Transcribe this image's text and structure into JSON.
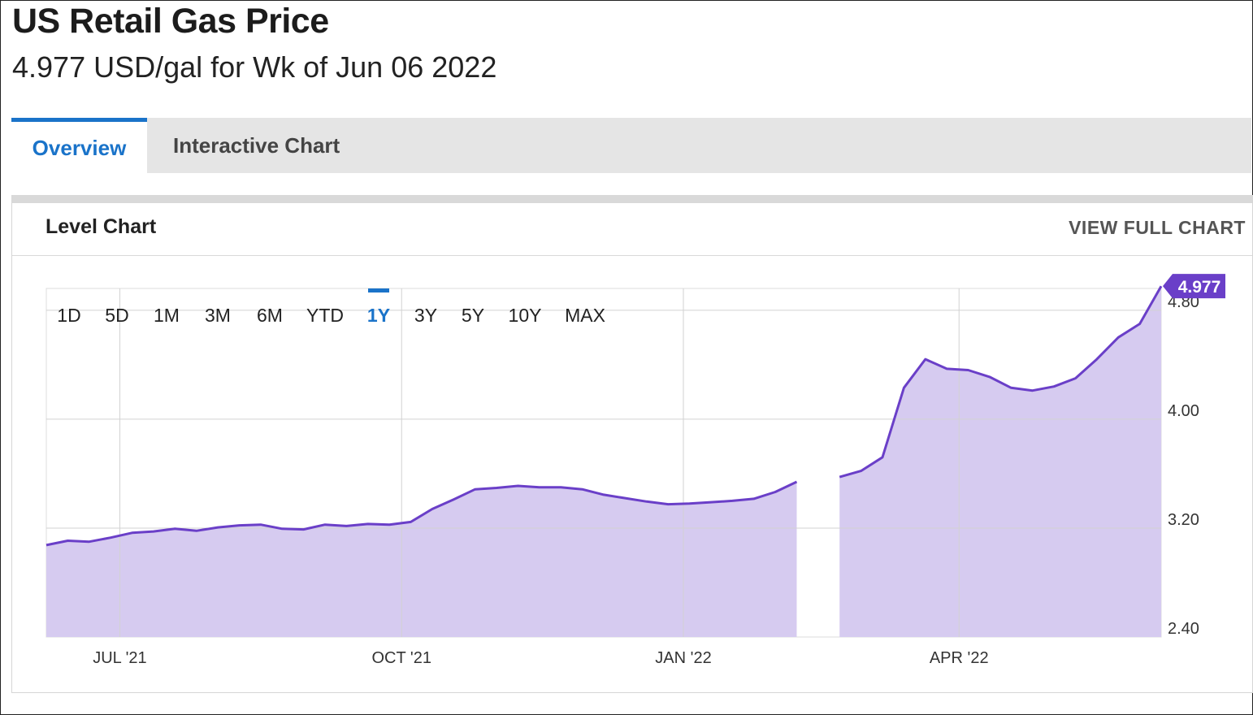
{
  "header": {
    "title": "US Retail Gas Price",
    "subtitle": "4.977 USD/gal for Wk of Jun 06 2022"
  },
  "tabs": [
    {
      "label": "Overview",
      "active": true
    },
    {
      "label": "Interactive Chart",
      "active": false
    }
  ],
  "card": {
    "title": "Level Chart",
    "view_full_label": "VIEW FULL CHART"
  },
  "range_buttons": [
    {
      "label": "1D",
      "active": false
    },
    {
      "label": "5D",
      "active": false
    },
    {
      "label": "1M",
      "active": false
    },
    {
      "label": "3M",
      "active": false
    },
    {
      "label": "6M",
      "active": false
    },
    {
      "label": "YTD",
      "active": false
    },
    {
      "label": "1Y",
      "active": true
    },
    {
      "label": "3Y",
      "active": false
    },
    {
      "label": "5Y",
      "active": false
    },
    {
      "label": "10Y",
      "active": false
    },
    {
      "label": "MAX",
      "active": false
    }
  ],
  "colors": {
    "line": "#6a3fc8",
    "fill": "#d6cbf0",
    "badge": "#6a3fc8",
    "accent": "#1a73c9"
  },
  "chart_data": {
    "type": "area",
    "x_tick_labels": [
      "JUL '21",
      "OCT '21",
      "JAN '22",
      "APR '22"
    ],
    "x_tick_dates": [
      "2021-07-01",
      "2021-10-01",
      "2022-01-01",
      "2022-04-01"
    ],
    "y_tick_labels": [
      "2.40",
      "3.20",
      "4.00",
      "4.80"
    ],
    "ylim": [
      2.4,
      4.96
    ],
    "last_value_label": "4.977",
    "grid": true,
    "series": [
      {
        "points": [
          {
            "date": "2021-06-07",
            "value": 3.075
          },
          {
            "date": "2021-06-14",
            "value": 3.107
          },
          {
            "date": "2021-06-21",
            "value": 3.1
          },
          {
            "date": "2021-06-28",
            "value": 3.13
          },
          {
            "date": "2021-07-05",
            "value": 3.165
          },
          {
            "date": "2021-07-12",
            "value": 3.175
          },
          {
            "date": "2021-07-19",
            "value": 3.195
          },
          {
            "date": "2021-07-26",
            "value": 3.18
          },
          {
            "date": "2021-08-02",
            "value": 3.205
          },
          {
            "date": "2021-08-09",
            "value": 3.22
          },
          {
            "date": "2021-08-16",
            "value": 3.225
          },
          {
            "date": "2021-08-23",
            "value": 3.195
          },
          {
            "date": "2021-08-30",
            "value": 3.19
          },
          {
            "date": "2021-09-06",
            "value": 3.225
          },
          {
            "date": "2021-09-13",
            "value": 3.215
          },
          {
            "date": "2021-09-20",
            "value": 3.23
          },
          {
            "date": "2021-09-27",
            "value": 3.225
          },
          {
            "date": "2021-10-04",
            "value": 3.245
          },
          {
            "date": "2021-10-11",
            "value": 3.34
          },
          {
            "date": "2021-10-18",
            "value": 3.41
          },
          {
            "date": "2021-10-25",
            "value": 3.485
          },
          {
            "date": "2021-11-01",
            "value": 3.495
          },
          {
            "date": "2021-11-08",
            "value": 3.51
          },
          {
            "date": "2021-11-15",
            "value": 3.5
          },
          {
            "date": "2021-11-22",
            "value": 3.5
          },
          {
            "date": "2021-11-29",
            "value": 3.485
          },
          {
            "date": "2021-12-06",
            "value": 3.445
          },
          {
            "date": "2021-12-13",
            "value": 3.42
          },
          {
            "date": "2021-12-20",
            "value": 3.395
          },
          {
            "date": "2021-12-27",
            "value": 3.375
          },
          {
            "date": "2022-01-03",
            "value": 3.38
          },
          {
            "date": "2022-01-10",
            "value": 3.39
          },
          {
            "date": "2022-01-17",
            "value": 3.4
          },
          {
            "date": "2022-01-24",
            "value": 3.415
          },
          {
            "date": "2022-01-31",
            "value": 3.465
          },
          {
            "date": "2022-02-07",
            "value": 3.54
          },
          {
            "date": "2022-02-21",
            "value": 3.575,
            "gap_before": true
          },
          {
            "date": "2022-02-28",
            "value": 3.62
          },
          {
            "date": "2022-03-07",
            "value": 3.72
          },
          {
            "date": "2022-03-14",
            "value": 4.23
          },
          {
            "date": "2022-03-21",
            "value": 4.44
          },
          {
            "date": "2022-03-28",
            "value": 4.37
          },
          {
            "date": "2022-04-04",
            "value": 4.36
          },
          {
            "date": "2022-04-11",
            "value": 4.31
          },
          {
            "date": "2022-04-18",
            "value": 4.23
          },
          {
            "date": "2022-04-25",
            "value": 4.21
          },
          {
            "date": "2022-05-02",
            "value": 4.24
          },
          {
            "date": "2022-05-09",
            "value": 4.3
          },
          {
            "date": "2022-05-16",
            "value": 4.44
          },
          {
            "date": "2022-05-23",
            "value": 4.6
          },
          {
            "date": "2022-05-30",
            "value": 4.7
          },
          {
            "date": "2022-06-06",
            "value": 4.977
          }
        ]
      }
    ]
  }
}
